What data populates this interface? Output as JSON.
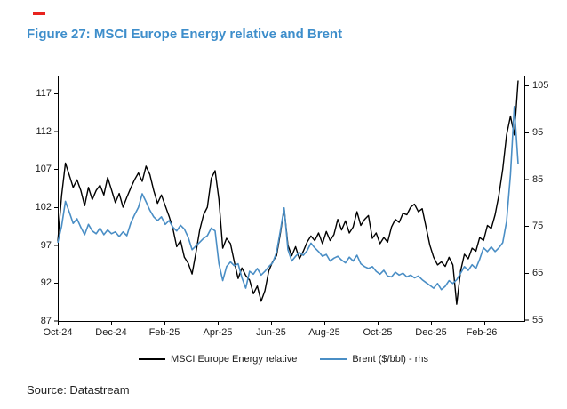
{
  "header": {
    "red_dash_color": "#e8231e",
    "title": "Figure 27: MSCI Europe Energy relative and Brent",
    "title_color": "#3e8ecb"
  },
  "source_note": "Source: Datastream",
  "chart_data": {
    "type": "line",
    "title": "MSCI Europe Energy relative and Brent",
    "grid": false,
    "legend_position": "bottom-center",
    "x_tick_labels": [
      "Oct-24",
      "Dec-24",
      "Feb-25",
      "Apr-25",
      "Jun-25",
      "Aug-25",
      "Oct-25",
      "Dec-25",
      "Feb-26"
    ],
    "x_range_months": [
      "Oct-24",
      "Mar-26"
    ],
    "y_axis_left": {
      "tick_labels": [
        "117",
        "112",
        "107",
        "102",
        "97",
        "92",
        "87"
      ],
      "range": [
        87,
        117
      ],
      "series": "MSCI Europe Energy relative"
    },
    "y_axis_right": {
      "tick_labels": [
        "105",
        "95",
        "85",
        "75",
        "65",
        "55"
      ],
      "range": [
        55,
        105
      ],
      "series": "Brent ($/bbl) - rhs"
    },
    "legend": [
      {
        "label": "MSCI Europe Energy relative",
        "color": "#000000"
      },
      {
        "label": "Brent ($/bbl) - rhs",
        "color": "#4a8ec5"
      }
    ],
    "series": [
      {
        "name": "MSCI Europe Energy relative",
        "axis": "left",
        "color": "#000000",
        "stroke_width": 1.4,
        "values": [
          97.5,
          103.5,
          107.8,
          106.2,
          104.6,
          105.6,
          104.2,
          102.2,
          104.6,
          103.0,
          104.2,
          104.9,
          103.6,
          105.9,
          104.3,
          102.6,
          103.8,
          102.0,
          103.3,
          104.5,
          105.6,
          106.5,
          105.4,
          107.4,
          106.3,
          104.2,
          102.5,
          103.6,
          102.2,
          100.8,
          99.2,
          96.8,
          97.6,
          95.4,
          94.6,
          93.2,
          96.0,
          99.0,
          101.0,
          102.0,
          105.8,
          106.8,
          103.0,
          96.6,
          97.9,
          97.2,
          94.8,
          92.6,
          94.0,
          93.0,
          92.4,
          90.6,
          91.6,
          89.6,
          91.0,
          93.6,
          94.8,
          95.6,
          98.5,
          101.8,
          97.0,
          95.6,
          96.8,
          95.2,
          96.2,
          97.4,
          98.2,
          97.6,
          98.6,
          97.2,
          98.8,
          97.6,
          98.4,
          100.4,
          99.0,
          100.2,
          98.6,
          99.4,
          101.4,
          99.6,
          100.4,
          100.9,
          97.9,
          98.6,
          97.2,
          98.0,
          97.4,
          99.4,
          100.4,
          100.0,
          101.2,
          101.0,
          102.0,
          102.4,
          101.4,
          101.8,
          99.4,
          97.0,
          95.4,
          94.4,
          94.8,
          94.2,
          95.4,
          94.4,
          89.2,
          93.6,
          95.8,
          95.2,
          96.6,
          96.2,
          98.0,
          97.6,
          99.6,
          99.2,
          101.0,
          103.6,
          107.0,
          111.5,
          114.0,
          111.5,
          118.7
        ]
      },
      {
        "name": "Brent ($/bbl) - rhs",
        "axis": "right",
        "color": "#4a8ec5",
        "stroke_width": 1.6,
        "values": [
          71.5,
          75.0,
          80.3,
          78.0,
          75.6,
          76.6,
          74.8,
          73.2,
          75.4,
          74.0,
          73.4,
          74.6,
          73.2,
          74.2,
          73.4,
          73.8,
          72.8,
          73.8,
          73.0,
          75.6,
          77.4,
          79.0,
          81.9,
          80.2,
          78.4,
          77.0,
          76.2,
          77.0,
          75.4,
          76.2,
          74.8,
          74.0,
          75.2,
          74.4,
          72.6,
          70.0,
          70.8,
          71.6,
          72.4,
          73.0,
          74.6,
          74.0,
          67.0,
          63.4,
          66.4,
          67.4,
          66.6,
          67.0,
          64.0,
          61.8,
          65.4,
          64.8,
          66.0,
          64.6,
          65.4,
          66.4,
          67.2,
          69.4,
          74.0,
          78.9,
          70.0,
          67.6,
          68.6,
          69.4,
          68.8,
          69.8,
          71.4,
          70.4,
          69.6,
          68.6,
          69.0,
          67.6,
          68.2,
          68.6,
          67.8,
          67.2,
          68.4,
          67.6,
          68.8,
          67.0,
          66.4,
          66.0,
          66.4,
          65.4,
          64.8,
          65.6,
          64.4,
          64.2,
          65.2,
          64.6,
          65.0,
          64.2,
          64.6,
          64.0,
          64.4,
          63.6,
          63.0,
          62.4,
          61.8,
          62.8,
          61.5,
          62.2,
          63.4,
          62.8,
          63.6,
          65.0,
          66.4,
          65.6,
          66.8,
          66.0,
          68.0,
          70.4,
          69.6,
          70.6,
          69.6,
          70.4,
          71.5,
          76.0,
          86.0,
          100.5,
          88.3
        ]
      }
    ]
  }
}
